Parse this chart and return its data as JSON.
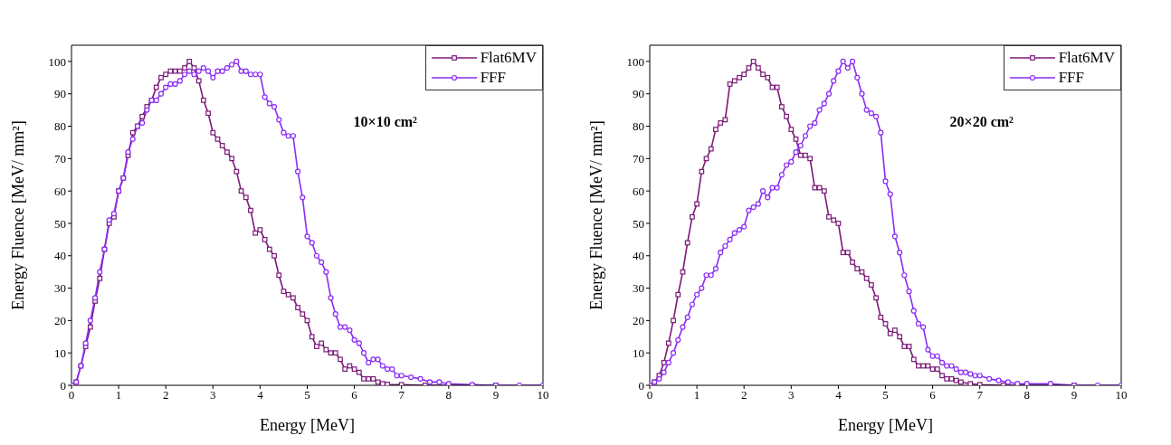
{
  "chart_data": [
    {
      "type": "line",
      "xlabel": "Energy [MeV]",
      "ylabel": "Energy Fluence [MeV/ mm²]",
      "annotations": [
        "10×10 cm²"
      ],
      "xlim": [
        0,
        10
      ],
      "xticks": [
        0,
        1,
        2,
        3,
        4,
        5,
        6,
        7,
        8,
        9,
        10
      ],
      "ylim": [
        0,
        105
      ],
      "yticks": [
        0,
        10,
        20,
        30,
        40,
        50,
        60,
        70,
        80,
        90,
        100
      ],
      "legend": "top right",
      "line_style": "solid",
      "series": [
        {
          "name": "Flat6MV",
          "color": "#7b1a78",
          "marker": "square",
          "x": [
            0,
            0.1,
            0.2,
            0.3,
            0.4,
            0.5,
            0.6,
            0.7,
            0.8,
            0.9,
            1.0,
            1.1,
            1.2,
            1.3,
            1.4,
            1.5,
            1.6,
            1.7,
            1.8,
            1.9,
            2.0,
            2.1,
            2.2,
            2.3,
            2.4,
            2.5,
            2.6,
            2.7,
            2.8,
            2.9,
            3.0,
            3.1,
            3.2,
            3.3,
            3.4,
            3.5,
            3.6,
            3.7,
            3.8,
            3.9,
            4.0,
            4.1,
            4.2,
            4.3,
            4.4,
            4.5,
            4.6,
            4.7,
            4.8,
            4.9,
            5.0,
            5.1,
            5.2,
            5.3,
            5.4,
            5.5,
            5.6,
            5.7,
            5.8,
            5.9,
            6.0,
            6.1,
            6.2,
            6.3,
            6.4,
            6.5,
            6.6,
            6.7,
            7.0,
            7.5,
            8,
            8.5,
            9
          ],
          "values": [
            0,
            1,
            6,
            12,
            18,
            26,
            33,
            42,
            50,
            52,
            60,
            64,
            71,
            78,
            80,
            83,
            86,
            88,
            92,
            95,
            96,
            97,
            97,
            97,
            98,
            100,
            98,
            94,
            88,
            84,
            78,
            76,
            74,
            72,
            70,
            66,
            60,
            58,
            54,
            47,
            48,
            45,
            42,
            40,
            34,
            29,
            28,
            27,
            24,
            22,
            20,
            15,
            12,
            13,
            11,
            10,
            10,
            8,
            5,
            6,
            5,
            4,
            2,
            2,
            2,
            1,
            0.5,
            0.3,
            0.2,
            0,
            0,
            0,
            0
          ]
        },
        {
          "name": "FFF",
          "color": "#8b2cf5",
          "marker": "circle",
          "x": [
            0,
            0.1,
            0.2,
            0.3,
            0.4,
            0.5,
            0.6,
            0.7,
            0.8,
            0.9,
            1.0,
            1.1,
            1.2,
            1.3,
            1.4,
            1.5,
            1.6,
            1.7,
            1.8,
            1.9,
            2.0,
            2.1,
            2.2,
            2.3,
            2.4,
            2.5,
            2.6,
            2.7,
            2.8,
            2.9,
            3.0,
            3.1,
            3.2,
            3.3,
            3.4,
            3.5,
            3.6,
            3.7,
            3.8,
            3.9,
            4.0,
            4.1,
            4.2,
            4.3,
            4.4,
            4.5,
            4.6,
            4.7,
            4.8,
            4.9,
            5.0,
            5.1,
            5.2,
            5.3,
            5.4,
            5.5,
            5.6,
            5.7,
            5.8,
            5.9,
            6.0,
            6.1,
            6.2,
            6.3,
            6.4,
            6.5,
            6.6,
            6.7,
            6.8,
            6.9,
            7.0,
            7.2,
            7.4,
            7.6,
            7.8,
            8.0,
            8.5,
            9,
            9.5,
            10
          ],
          "values": [
            0,
            1,
            6,
            13,
            20,
            27,
            35,
            42,
            51,
            53,
            60,
            64,
            72,
            76,
            80,
            81,
            85,
            88,
            88,
            90,
            92,
            93,
            93,
            94,
            96,
            97,
            96,
            97,
            98,
            97,
            95,
            97,
            97,
            98,
            99,
            100,
            97,
            97,
            96,
            96,
            96,
            89,
            87,
            86,
            82,
            78,
            77,
            77,
            66,
            58,
            46,
            44,
            40,
            38,
            35,
            27,
            22,
            18,
            18,
            17,
            14,
            13,
            10,
            7,
            8,
            8,
            6,
            5,
            5,
            3,
            3,
            2.5,
            2,
            1,
            1,
            0.5,
            0.2,
            0,
            0,
            0
          ]
        }
      ]
    },
    {
      "type": "line",
      "xlabel": "Energy [MeV]",
      "ylabel": "Energy Fluence [MeV/ mm²]",
      "annotations": [
        "20×20 cm²"
      ],
      "xlim": [
        0,
        10
      ],
      "xticks": [
        0,
        1,
        2,
        3,
        4,
        5,
        6,
        7,
        8,
        9,
        10
      ],
      "ylim": [
        0,
        105
      ],
      "yticks": [
        0,
        10,
        20,
        30,
        40,
        50,
        60,
        70,
        80,
        90,
        100
      ],
      "legend": "top right",
      "line_style": "solid",
      "series": [
        {
          "name": "Flat6MV",
          "color": "#7b1a78",
          "marker": "square",
          "x": [
            0,
            0.1,
            0.2,
            0.3,
            0.4,
            0.5,
            0.6,
            0.7,
            0.8,
            0.9,
            1.0,
            1.1,
            1.2,
            1.3,
            1.4,
            1.5,
            1.6,
            1.7,
            1.8,
            1.9,
            2.0,
            2.1,
            2.2,
            2.3,
            2.4,
            2.5,
            2.6,
            2.7,
            2.8,
            2.9,
            3.0,
            3.1,
            3.2,
            3.3,
            3.4,
            3.5,
            3.6,
            3.7,
            3.8,
            3.9,
            4.0,
            4.1,
            4.2,
            4.3,
            4.4,
            4.5,
            4.6,
            4.7,
            4.8,
            4.9,
            5.0,
            5.1,
            5.2,
            5.3,
            5.4,
            5.5,
            5.6,
            5.7,
            5.8,
            5.9,
            6.0,
            6.1,
            6.2,
            6.3,
            6.4,
            6.5,
            6.6,
            6.8,
            7.0,
            7.5,
            8,
            8.5,
            9
          ],
          "values": [
            0,
            1,
            3,
            7,
            13,
            20,
            28,
            35,
            44,
            52,
            56,
            66,
            70,
            73,
            79,
            81,
            82,
            93,
            94,
            95,
            96,
            98,
            100,
            98,
            96,
            95,
            92,
            92,
            86,
            83,
            79,
            76,
            71,
            71,
            70,
            61,
            61,
            60,
            52,
            51,
            50,
            41,
            41,
            38,
            36,
            35,
            33,
            31,
            27,
            21,
            19,
            16,
            17,
            15,
            12,
            12,
            8,
            6,
            6,
            6,
            5,
            5,
            3,
            2,
            2,
            1.5,
            1,
            0.5,
            0.2,
            0,
            0,
            0,
            0
          ]
        },
        {
          "name": "FFF",
          "color": "#8b2cf5",
          "marker": "circle",
          "x": [
            0,
            0.1,
            0.2,
            0.3,
            0.4,
            0.5,
            0.6,
            0.7,
            0.8,
            0.9,
            1.0,
            1.1,
            1.2,
            1.3,
            1.4,
            1.5,
            1.6,
            1.7,
            1.8,
            1.9,
            2.0,
            2.1,
            2.2,
            2.3,
            2.4,
            2.5,
            2.6,
            2.7,
            2.8,
            2.9,
            3.0,
            3.1,
            3.2,
            3.3,
            3.4,
            3.5,
            3.6,
            3.7,
            3.8,
            3.9,
            4.0,
            4.1,
            4.2,
            4.3,
            4.4,
            4.5,
            4.6,
            4.7,
            4.8,
            4.9,
            5.0,
            5.1,
            5.2,
            5.3,
            5.4,
            5.5,
            5.6,
            5.7,
            5.8,
            5.9,
            6.0,
            6.1,
            6.2,
            6.3,
            6.4,
            6.5,
            6.6,
            6.7,
            6.8,
            6.9,
            7.0,
            7.2,
            7.4,
            7.6,
            7.8,
            8.0,
            8.5,
            9,
            9.5,
            10
          ],
          "values": [
            0,
            1,
            2,
            4,
            7,
            10,
            14,
            18,
            21,
            25,
            28,
            30,
            34,
            34,
            36,
            41,
            43,
            45,
            47,
            48,
            49,
            54,
            55,
            56,
            60,
            58,
            61,
            61,
            65,
            68,
            69,
            72,
            74,
            77,
            80,
            81,
            85,
            87,
            90,
            94,
            97,
            100,
            98,
            100,
            95,
            90,
            85,
            84,
            83,
            78,
            63,
            59,
            46,
            41,
            34,
            29,
            23,
            19,
            18,
            11,
            9,
            9,
            7,
            6,
            6,
            5,
            4,
            4,
            3.5,
            3,
            3,
            2,
            1.5,
            1,
            0.5,
            0.5,
            0.5,
            0,
            0,
            0
          ]
        }
      ]
    }
  ]
}
